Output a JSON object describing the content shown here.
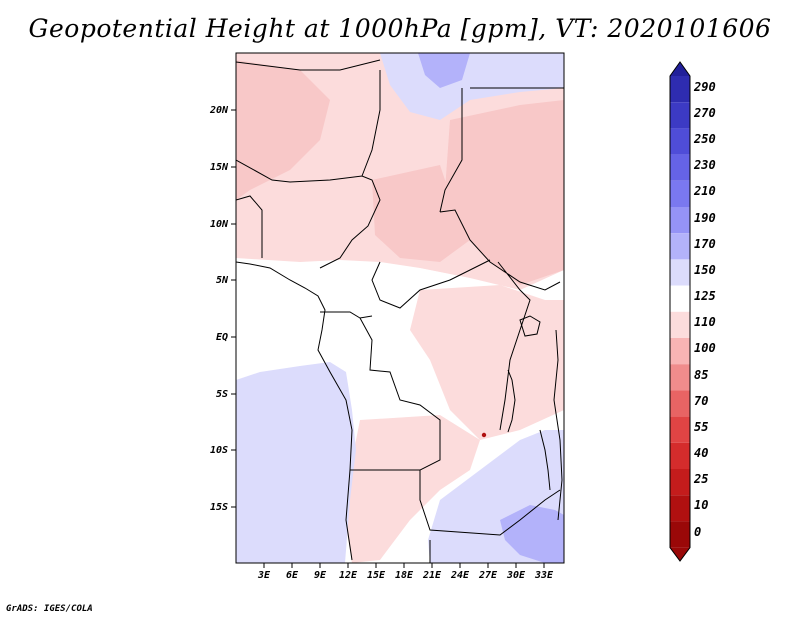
{
  "title": "Geopotential Height at 1000hPa [gpm], VT: 2020101606",
  "credit": "GrADS: IGES/COLA",
  "map": {
    "lat_labels": [
      "20N",
      "15N",
      "10N",
      "5N",
      "EQ",
      "5S",
      "10S",
      "15S"
    ],
    "lon_labels": [
      "3E",
      "6E",
      "9E",
      "12E",
      "15E",
      "18E",
      "21E",
      "24E",
      "27E",
      "30E",
      "33E"
    ]
  },
  "colorbar": {
    "levels": [
      "290",
      "270",
      "250",
      "230",
      "210",
      "190",
      "170",
      "150",
      "125",
      "110",
      "100",
      "85",
      "70",
      "55",
      "40",
      "25",
      "10",
      "0"
    ],
    "colors": [
      "#21209a",
      "#2e2cb0",
      "#3c3ac4",
      "#4f4dd8",
      "#6563e6",
      "#7a78f0",
      "#9593f6",
      "#b3b2fa",
      "#dcdcfc",
      "#ffffff",
      "#fcdcdc",
      "#f8b4b4",
      "#f08c8c",
      "#e86464",
      "#e04444",
      "#d42c2c",
      "#c41c1c",
      "#b01010",
      "#9a0808"
    ]
  },
  "field_colors": {
    "blue_light": "#dcdcfc",
    "blue_mid": "#b3b2fa",
    "pink_light": "#fcdcdc",
    "pink_mid": "#f8c8c8",
    "red_dot": "#b01010"
  }
}
